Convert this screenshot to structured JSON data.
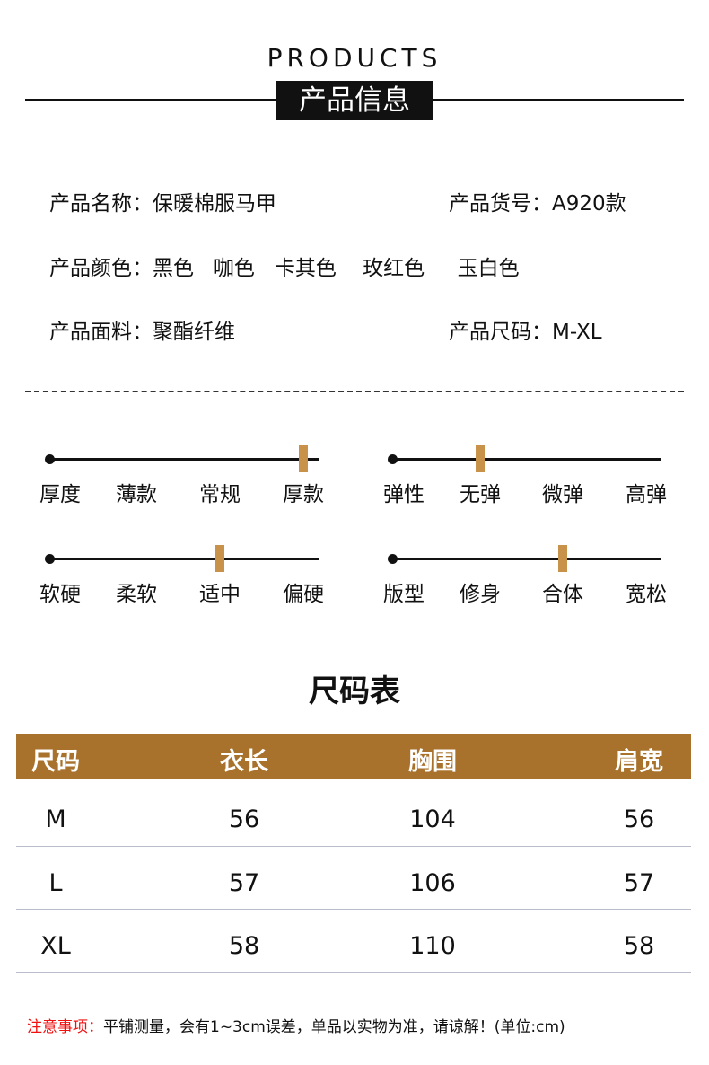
{
  "header": {
    "title_en": "PRODUCTS",
    "title_cn": "产品信息"
  },
  "info": {
    "name": "产品名称：保暖棉服马甲",
    "sku": "产品货号：A920款",
    "colors": "产品颜色：黑色   咖色   卡其色    玫红色     玉白色",
    "fabric": "产品面料：聚酯纤维",
    "sizes": "产品尺码：M-XL"
  },
  "accent_color": "#c9924a",
  "sliders": [
    {
      "label": "厚度",
      "options": [
        "薄款",
        "常规",
        "厚款"
      ],
      "selected_index": 2,
      "selected": "厚款"
    },
    {
      "label": "弹性",
      "options": [
        "无弹",
        "微弹",
        "高弹"
      ],
      "selected_index": 0,
      "selected": "无弹"
    },
    {
      "label": "软硬",
      "options": [
        "柔软",
        "适中",
        "偏硬"
      ],
      "selected_index": 1,
      "selected": "适中"
    },
    {
      "label": "版型",
      "options": [
        "修身",
        "合体",
        "宽松"
      ],
      "selected_index": 1,
      "selected": "合体"
    }
  ],
  "size_table": {
    "title": "尺码表",
    "header_color": "#a8722c",
    "columns": [
      "尺码",
      "衣长",
      "胸围",
      "肩宽"
    ],
    "rows": [
      [
        "M",
        "56",
        "104",
        "56"
      ],
      [
        "L",
        "57",
        "106",
        "57"
      ],
      [
        "XL",
        "58",
        "110",
        "58"
      ]
    ]
  },
  "note": {
    "label": "注意事项：",
    "text": "平铺测量，会有1~3cm误差，单品以实物为准，请谅解！(单位:cm)"
  }
}
